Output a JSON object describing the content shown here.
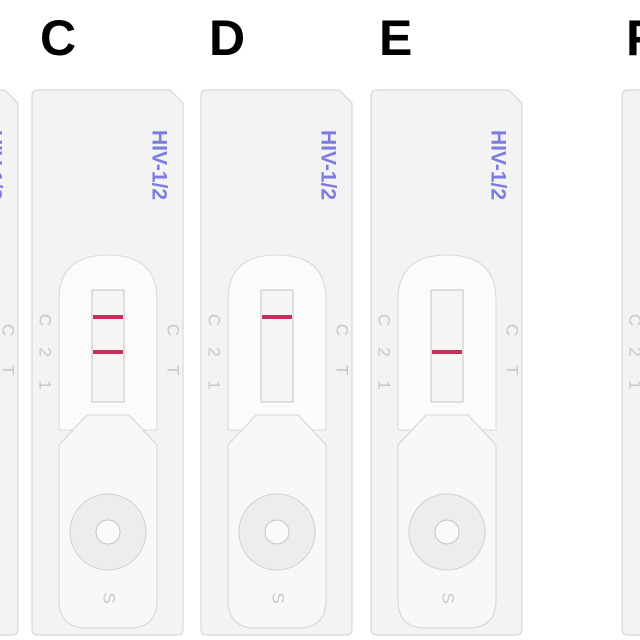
{
  "panels": [
    {
      "label": "C",
      "control_line": true,
      "test_line": true
    },
    {
      "label": "D",
      "control_line": true,
      "test_line": false
    },
    {
      "label": "E",
      "control_line": false,
      "test_line": true
    },
    {
      "label": "F",
      "control_line": false,
      "test_line": false
    }
  ],
  "cassette": {
    "brand": "HIV-1/2",
    "control_mark": "C",
    "test_mark": "T",
    "side_mark_2": "2",
    "side_mark_1": "1",
    "sample_mark": "S"
  }
}
